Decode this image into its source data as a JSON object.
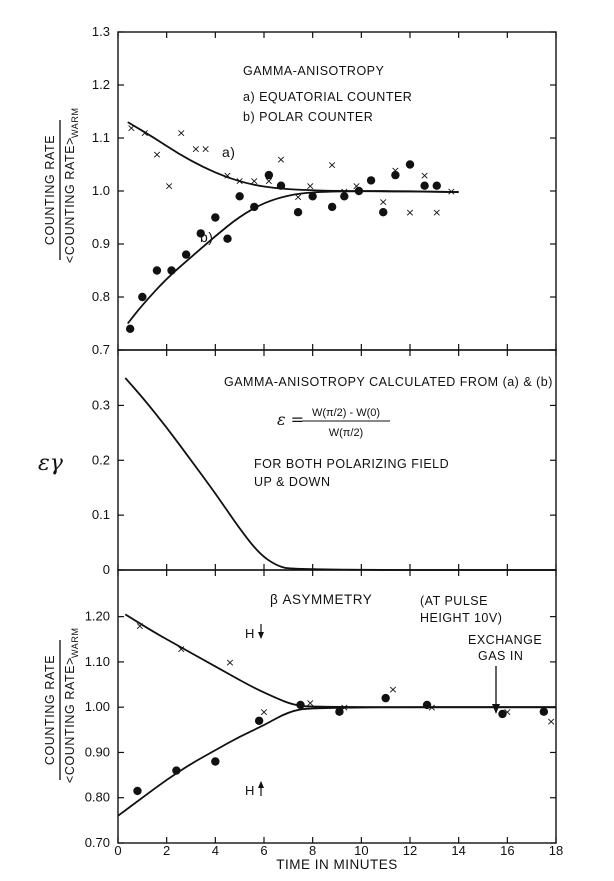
{
  "chart_data": [
    {
      "type": "scatter",
      "ylabel_top": "COUNTING RATE",
      "ylabel_bottom": "<COUNTING RATE>",
      "ylabel_sub": "WARM",
      "ylim": [
        0.7,
        1.3
      ],
      "yticks": [
        "0.7",
        "0.8",
        "0.9",
        "1.0",
        "1.1",
        "1.2",
        "1.3"
      ],
      "xlim": [
        0,
        18
      ],
      "annotations": [
        "GAMMA-ANISOTROPY",
        "a) EQUATORIAL COUNTER",
        "b) POLAR COUNTER"
      ],
      "curve_labels": [
        "a)",
        "b)"
      ],
      "series": [
        {
          "name": "a) EQUATORIAL COUNTER",
          "marker": "x",
          "points": [
            [
              0.55,
              1.12
            ],
            [
              1.1,
              1.11
            ],
            [
              1.6,
              1.07
            ],
            [
              2.1,
              1.01
            ],
            [
              2.6,
              1.11
            ],
            [
              3.2,
              1.08
            ],
            [
              3.6,
              1.08
            ],
            [
              4.5,
              1.03
            ],
            [
              5.0,
              1.02
            ],
            [
              5.6,
              1.02
            ],
            [
              6.2,
              1.02
            ],
            [
              6.7,
              1.06
            ],
            [
              7.4,
              0.99
            ],
            [
              7.9,
              1.01
            ],
            [
              8.8,
              1.05
            ],
            [
              9.3,
              1.0
            ],
            [
              9.8,
              1.01
            ],
            [
              10.9,
              0.98
            ],
            [
              11.4,
              1.04
            ],
            [
              12.0,
              0.96
            ],
            [
              12.6,
              1.03
            ],
            [
              13.1,
              0.96
            ],
            [
              13.7,
              1.0
            ]
          ]
        },
        {
          "name": "b) POLAR COUNTER",
          "marker": "dot",
          "points": [
            [
              0.5,
              0.74
            ],
            [
              1.0,
              0.8
            ],
            [
              1.6,
              0.85
            ],
            [
              2.2,
              0.85
            ],
            [
              2.8,
              0.88
            ],
            [
              3.4,
              0.92
            ],
            [
              4.0,
              0.95
            ],
            [
              4.5,
              0.91
            ],
            [
              5.0,
              0.99
            ],
            [
              5.6,
              0.97
            ],
            [
              6.2,
              1.03
            ],
            [
              6.7,
              1.01
            ],
            [
              7.4,
              0.96
            ],
            [
              8.0,
              0.99
            ],
            [
              8.8,
              0.97
            ],
            [
              9.3,
              0.99
            ],
            [
              9.9,
              1.0
            ],
            [
              10.4,
              1.02
            ],
            [
              10.9,
              0.96
            ],
            [
              11.4,
              1.03
            ],
            [
              12.0,
              1.05
            ],
            [
              12.6,
              1.01
            ],
            [
              13.1,
              1.01
            ]
          ]
        },
        {
          "name": "a) EQUATORIAL COUNTER",
          "type": "line",
          "points": [
            [
              0.4,
              1.13
            ],
            [
              1.5,
              1.1
            ],
            [
              2.5,
              1.07
            ],
            [
              3.5,
              1.045
            ],
            [
              4.5,
              1.025
            ],
            [
              5.5,
              1.012
            ],
            [
              6.5,
              1.005
            ],
            [
              7.5,
              1.002
            ],
            [
              9,
              1.0
            ],
            [
              11,
              1.0
            ],
            [
              14,
              0.998
            ]
          ]
        },
        {
          "name": "b) POLAR COUNTER",
          "type": "line",
          "points": [
            [
              0.4,
              0.75
            ],
            [
              1.0,
              0.785
            ],
            [
              2.0,
              0.835
            ],
            [
              3.0,
              0.875
            ],
            [
              4.0,
              0.915
            ],
            [
              5.0,
              0.952
            ],
            [
              6.0,
              0.978
            ],
            [
              7.0,
              0.992
            ],
            [
              8.0,
              0.998
            ],
            [
              10,
              1.0
            ],
            [
              14,
              0.998
            ]
          ]
        }
      ]
    },
    {
      "type": "line",
      "ylabel": "εγ",
      "ylim": [
        0,
        0.35
      ],
      "yticks": [
        "0",
        "0.1",
        "0.2",
        "0.3"
      ],
      "xlim": [
        0,
        18
      ],
      "annotations": [
        "GAMMA-ANISOTROPY CALCULATED FROM (a) & (b)",
        "FOR BOTH POLARIZING FIELD",
        "UP & DOWN"
      ],
      "formula": {
        "lhs": "ε =",
        "numerator": "W(π/2) - W(0)",
        "denominator": "W(π/2)"
      },
      "series": [
        {
          "points": [
            [
              0.3,
              0.35
            ],
            [
              1.0,
              0.315
            ],
            [
              2.0,
              0.26
            ],
            [
              3.0,
              0.2
            ],
            [
              4.0,
              0.14
            ],
            [
              5.0,
              0.075
            ],
            [
              5.8,
              0.03
            ],
            [
              6.5,
              0.008
            ],
            [
              7.2,
              0.0
            ],
            [
              18,
              0.0
            ]
          ]
        }
      ]
    },
    {
      "type": "scatter",
      "ylabel_top": "COUNTING RATE",
      "ylabel_bottom": "<COUNTING RATE>",
      "ylabel_sub": "WARM",
      "ylim": [
        0.7,
        1.25
      ],
      "yticks": [
        "0.70",
        "0.80",
        "0.90",
        "1.00",
        "1.10",
        "1.20"
      ],
      "xlim": [
        0,
        18
      ],
      "xticks": [
        "0",
        "2",
        "4",
        "6",
        "8",
        "10",
        "12",
        "14",
        "16",
        "18"
      ],
      "xlabel": "TIME IN MINUTES",
      "annotations": [
        "β ASYMMETRY",
        "(AT PULSE",
        "HEIGHT 10V)",
        "EXCHANGE",
        "GAS IN",
        "H",
        "H"
      ],
      "series": [
        {
          "marker": "x",
          "points": [
            [
              0.9,
              1.18
            ],
            [
              2.6,
              1.13
            ],
            [
              4.6,
              1.1
            ],
            [
              6.0,
              0.99
            ],
            [
              7.9,
              1.01
            ],
            [
              9.3,
              1.0
            ],
            [
              11.3,
              1.04
            ],
            [
              12.9,
              1.0
            ],
            [
              16.0,
              0.99
            ],
            [
              17.8,
              0.97
            ]
          ]
        },
        {
          "marker": "dot",
          "points": [
            [
              0.8,
              0.815
            ],
            [
              2.4,
              0.86
            ],
            [
              4.0,
              0.88
            ],
            [
              5.8,
              0.97
            ],
            [
              7.5,
              1.005
            ],
            [
              9.1,
              0.99
            ],
            [
              11.0,
              1.02
            ],
            [
              12.7,
              1.005
            ],
            [
              15.8,
              0.985
            ],
            [
              17.5,
              0.99
            ]
          ]
        },
        {
          "type": "line",
          "points": [
            [
              0.3,
              1.205
            ],
            [
              1.5,
              1.165
            ],
            [
              2.5,
              1.135
            ],
            [
              3.5,
              1.105
            ],
            [
              4.5,
              1.075
            ],
            [
              5.5,
              1.045
            ],
            [
              6.5,
              1.02
            ],
            [
              7.2,
              1.005
            ],
            [
              8.0,
              1.0
            ],
            [
              18,
              1.0
            ]
          ]
        },
        {
          "type": "line",
          "points": [
            [
              0,
              0.76
            ],
            [
              1.0,
              0.8
            ],
            [
              2.0,
              0.84
            ],
            [
              3.0,
              0.875
            ],
            [
              4.0,
              0.905
            ],
            [
              5.0,
              0.935
            ],
            [
              6.0,
              0.96
            ],
            [
              7.0,
              0.99
            ],
            [
              8.0,
              1.0
            ],
            [
              18,
              1.0
            ]
          ]
        }
      ]
    }
  ]
}
